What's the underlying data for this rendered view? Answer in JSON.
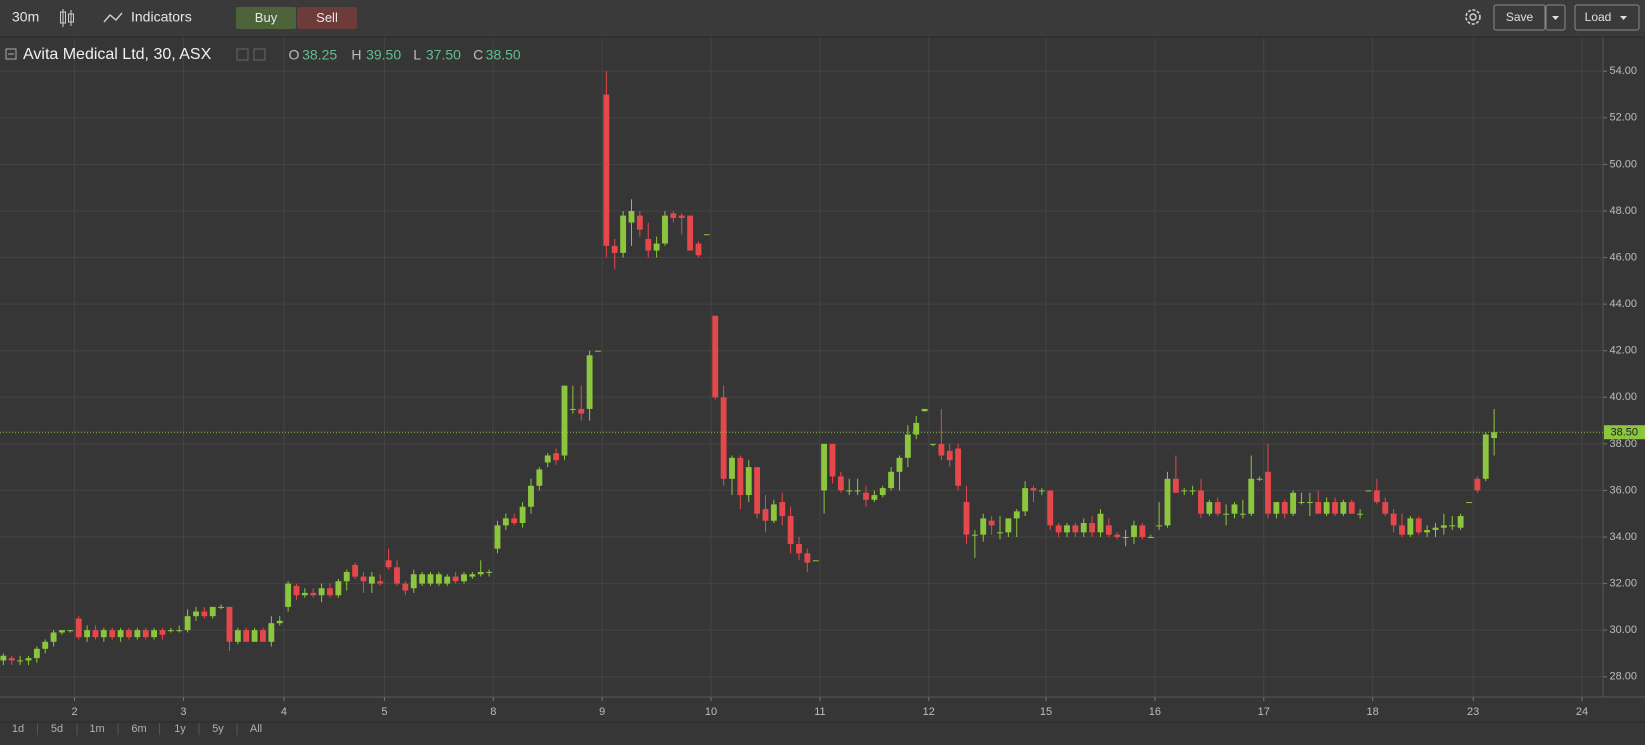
{
  "ui": {
    "interval": "30m",
    "indicators": "Indicators",
    "buy": "Buy",
    "sell": "Sell",
    "save": "Save",
    "load": "Load",
    "ranges": [
      "1d",
      "5d",
      "1m",
      "6m",
      "1y",
      "5y",
      "All"
    ]
  },
  "chart_data": {
    "type": "candlestick",
    "title": "Avita Medical Ltd, 30, ASX",
    "ohlc_legend": [
      {
        "key": "O",
        "value": "38.25"
      },
      {
        "key": "H",
        "value": "39.50"
      },
      {
        "key": "L",
        "value": "37.50"
      },
      {
        "key": "C",
        "value": "38.50"
      }
    ],
    "up_color": "#8cc63f",
    "down_color": "#e5474b",
    "grid": true,
    "last_price": {
      "value": 38.5,
      "label": "38.50"
    },
    "xlim": [
      -0.4,
      191
    ],
    "xticks": [
      {
        "value": 8.5,
        "label": "2"
      },
      {
        "value": 21.5,
        "label": "3"
      },
      {
        "value": 33.5,
        "label": "4"
      },
      {
        "value": 45.5,
        "label": "5"
      },
      {
        "value": 58.5,
        "label": "8"
      },
      {
        "value": 71.5,
        "label": "9"
      },
      {
        "value": 84.5,
        "label": "10"
      },
      {
        "value": 97.5,
        "label": "11"
      },
      {
        "value": 110.5,
        "label": "12"
      },
      {
        "value": 124.5,
        "label": "15"
      },
      {
        "value": 137.5,
        "label": "16"
      },
      {
        "value": 150.5,
        "label": "17"
      },
      {
        "value": 163.5,
        "label": "18"
      },
      {
        "value": 175.5,
        "label": "23"
      },
      {
        "value": 188.5,
        "label": "24"
      }
    ],
    "ylim": [
      27.13,
      55.47
    ],
    "yticks": [
      {
        "value": 28,
        "label": "28.00"
      },
      {
        "value": 30,
        "label": "30.00"
      },
      {
        "value": 32,
        "label": "32.00"
      },
      {
        "value": 34,
        "label": "34.00"
      },
      {
        "value": 36,
        "label": "36.00"
      },
      {
        "value": 38,
        "label": "38.00"
      },
      {
        "value": 40,
        "label": "40.00"
      },
      {
        "value": 42,
        "label": "42.00"
      },
      {
        "value": 44,
        "label": "44.00"
      },
      {
        "value": 46,
        "label": "46.00"
      },
      {
        "value": 48,
        "label": "48.00"
      },
      {
        "value": 50,
        "label": "50.00"
      },
      {
        "value": 52,
        "label": "52.00"
      },
      {
        "value": 54,
        "label": "54.00"
      }
    ],
    "open": [
      28.7,
      28.8,
      28.7,
      28.7,
      28.8,
      29.2,
      29.5,
      29.9,
      30.0,
      30.5,
      29.7,
      30.0,
      29.7,
      30.0,
      29.7,
      30.0,
      29.7,
      30.0,
      29.7,
      30.0,
      30.0,
      30.0,
      30.0,
      30.6,
      30.8,
      30.6,
      31.0,
      31.0,
      29.5,
      30.0,
      29.5,
      30.0,
      29.5,
      30.3,
      31.0,
      31.9,
      31.5,
      31.6,
      31.5,
      31.8,
      31.5,
      32.1,
      32.8,
      32.3,
      32.0,
      32.1,
      33.0,
      32.7,
      32.0,
      31.8,
      32.0,
      32.0,
      32.0,
      32.0,
      32.3,
      32.1,
      32.3,
      32.4,
      32.5,
      33.5,
      34.5,
      34.8,
      34.6,
      35.3,
      36.2,
      37.2,
      37.6,
      37.5,
      39.5,
      39.5,
      39.5,
      42.0,
      53.0,
      46.5,
      46.2,
      47.5,
      47.8,
      46.8,
      46.3,
      46.6,
      47.9,
      47.8,
      47.8,
      46.6,
      47.0,
      43.5,
      40.0,
      36.5,
      37.4,
      35.8,
      37.0,
      35.2,
      34.7,
      35.5,
      34.9,
      33.7,
      33.3,
      33.0,
      36.0,
      38.0,
      36.6,
      36.0,
      36.0,
      35.9,
      35.6,
      35.8,
      36.1,
      36.8,
      37.4,
      38.4,
      39.4,
      38.0,
      38.0,
      37.7,
      37.8,
      35.5,
      34.1,
      34.1,
      34.7,
      34.2,
      34.2,
      34.8,
      35.1,
      36.1,
      36.0,
      36.0,
      34.5,
      34.2,
      34.5,
      34.2,
      34.6,
      34.2,
      34.5,
      34.1,
      34.0,
      34.0,
      34.5,
      34.0,
      34.5,
      34.5,
      36.5,
      36.0,
      36.0,
      36.0,
      35.0,
      35.5,
      35.0,
      35.0,
      35.0,
      35.0,
      36.5,
      36.8,
      35.0,
      35.5,
      35.0,
      35.5,
      35.5,
      35.5,
      35.0,
      35.5,
      35.0,
      35.5,
      35.0,
      36.0,
      36.0,
      35.5,
      35.0,
      34.5,
      34.1,
      34.8,
      34.2,
      34.3,
      34.4,
      34.5,
      34.4,
      35.5,
      36.5,
      36.5,
      38.25
    ],
    "high": [
      29.0,
      28.9,
      28.9,
      28.9,
      29.3,
      29.6,
      30.0,
      30.0,
      30.0,
      30.6,
      30.2,
      30.2,
      30.1,
      30.1,
      30.1,
      30.1,
      30.1,
      30.1,
      30.1,
      30.1,
      30.1,
      30.2,
      30.9,
      31.0,
      31.0,
      31.0,
      31.1,
      31.0,
      30.1,
      30.1,
      30.1,
      30.1,
      30.6,
      30.6,
      32.1,
      32.0,
      31.8,
      31.8,
      32.0,
      32.0,
      32.2,
      32.6,
      32.9,
      32.5,
      32.5,
      32.4,
      33.5,
      33.0,
      32.1,
      32.6,
      32.5,
      32.5,
      32.5,
      32.4,
      32.5,
      32.5,
      32.5,
      33.0,
      32.6,
      34.7,
      35.0,
      35.0,
      35.5,
      36.5,
      37.0,
      37.6,
      37.8,
      40.5,
      40.5,
      40.5,
      42.0,
      42.0,
      54.0,
      46.8,
      48.0,
      48.5,
      48.0,
      47.5,
      46.9,
      48.0,
      48.0,
      47.9,
      47.8,
      46.7,
      47.0,
      43.5,
      40.5,
      37.5,
      37.5,
      37.3,
      37.0,
      35.8,
      35.6,
      35.9,
      35.3,
      34.0,
      33.5,
      33.0,
      38.0,
      38.0,
      36.8,
      36.5,
      36.5,
      36.2,
      36.0,
      36.2,
      37.0,
      37.5,
      38.8,
      39.2,
      39.5,
      38.0,
      39.5,
      38.0,
      38.0,
      36.2,
      34.3,
      35.0,
      34.9,
      34.9,
      34.8,
      35.2,
      36.4,
      36.2,
      36.1,
      36.0,
      34.6,
      34.6,
      34.6,
      34.8,
      34.9,
      35.2,
      34.8,
      34.2,
      34.3,
      34.7,
      34.6,
      34.1,
      35.5,
      36.8,
      37.5,
      36.1,
      36.2,
      36.5,
      35.6,
      35.7,
      35.4,
      35.5,
      35.6,
      37.5,
      36.6,
      38.0,
      35.5,
      35.6,
      36.0,
      35.9,
      35.9,
      36.0,
      35.7,
      35.7,
      35.6,
      35.6,
      35.2,
      36.0,
      36.5,
      35.7,
      35.2,
      35.0,
      34.9,
      34.9,
      34.5,
      34.6,
      35.0,
      34.9,
      35.0,
      35.5,
      36.6,
      38.5,
      39.5
    ],
    "low": [
      28.5,
      28.5,
      28.5,
      28.5,
      28.6,
      29.0,
      29.3,
      29.8,
      29.9,
      29.6,
      29.5,
      29.6,
      29.5,
      29.6,
      29.5,
      29.6,
      29.6,
      29.6,
      29.6,
      29.6,
      29.9,
      29.9,
      29.9,
      30.4,
      30.5,
      30.5,
      30.9,
      29.1,
      29.4,
      29.5,
      29.5,
      29.5,
      29.3,
      30.2,
      30.8,
      31.3,
      31.4,
      31.4,
      31.2,
      31.4,
      31.4,
      31.7,
      32.2,
      31.6,
      31.6,
      31.9,
      32.6,
      31.9,
      31.5,
      31.6,
      31.9,
      31.9,
      31.9,
      31.9,
      32.0,
      32.0,
      32.2,
      32.3,
      32.3,
      33.3,
      34.3,
      34.5,
      34.4,
      35.0,
      36.0,
      37.0,
      37.1,
      37.3,
      39.3,
      39.0,
      39.0,
      42.0,
      46.0,
      45.5,
      46.0,
      46.5,
      46.9,
      46.0,
      46.0,
      46.5,
      47.5,
      47.0,
      46.3,
      46.0,
      47.0,
      39.9,
      36.2,
      35.8,
      35.2,
      35.5,
      34.8,
      34.2,
      34.6,
      34.5,
      33.3,
      33.0,
      32.5,
      33.0,
      35.0,
      36.3,
      35.9,
      35.8,
      35.8,
      35.3,
      35.5,
      35.7,
      36.0,
      36.0,
      37.0,
      38.2,
      39.4,
      37.9,
      37.3,
      37.0,
      36.0,
      33.7,
      33.1,
      33.8,
      34.1,
      33.9,
      34.0,
      34.0,
      34.9,
      35.5,
      35.8,
      34.3,
      34.0,
      34.0,
      34.0,
      34.0,
      34.0,
      34.0,
      34.0,
      33.9,
      33.6,
      33.7,
      33.9,
      34.0,
      34.3,
      34.4,
      35.9,
      35.8,
      35.8,
      34.8,
      34.9,
      34.9,
      34.5,
      34.8,
      34.8,
      34.9,
      36.4,
      34.8,
      34.8,
      34.8,
      34.9,
      35.4,
      34.9,
      35.0,
      34.9,
      34.9,
      34.9,
      35.0,
      34.8,
      36.0,
      35.4,
      34.9,
      34.2,
      34.0,
      34.0,
      34.1,
      34.0,
      34.0,
      34.1,
      34.3,
      34.3,
      35.5,
      35.9,
      36.4,
      37.5
    ],
    "close": [
      28.9,
      28.7,
      28.7,
      28.8,
      29.2,
      29.5,
      29.9,
      30.0,
      30.0,
      29.7,
      30.0,
      29.7,
      30.0,
      29.7,
      30.0,
      29.7,
      30.0,
      29.7,
      30.0,
      29.8,
      30.0,
      30.0,
      30.6,
      30.8,
      30.6,
      31.0,
      31.0,
      29.5,
      30.0,
      29.5,
      30.0,
      29.5,
      30.3,
      30.4,
      32.0,
      31.5,
      31.6,
      31.5,
      31.8,
      31.5,
      32.1,
      32.5,
      32.3,
      32.1,
      32.3,
      32.0,
      32.7,
      32.0,
      31.7,
      32.4,
      32.4,
      32.4,
      32.4,
      32.3,
      32.1,
      32.4,
      32.4,
      32.5,
      32.5,
      34.5,
      34.8,
      34.6,
      35.3,
      36.2,
      36.9,
      37.5,
      37.3,
      40.5,
      39.5,
      39.3,
      41.8,
      42.0,
      46.5,
      46.2,
      47.8,
      48.0,
      47.2,
      46.3,
      46.6,
      47.8,
      47.7,
      47.7,
      46.3,
      46.1,
      47.0,
      40.0,
      36.5,
      37.4,
      35.8,
      37.0,
      35.0,
      34.7,
      35.4,
      34.9,
      33.7,
      33.3,
      32.9,
      33.0,
      38.0,
      36.6,
      36.0,
      36.0,
      36.0,
      35.6,
      35.8,
      36.1,
      36.8,
      37.4,
      38.4,
      38.9,
      39.5,
      38.0,
      37.5,
      37.3,
      36.2,
      34.1,
      34.1,
      34.8,
      34.5,
      34.2,
      34.8,
      35.1,
      36.1,
      36.0,
      36.0,
      34.5,
      34.2,
      34.5,
      34.2,
      34.6,
      34.2,
      35.0,
      34.1,
      34.0,
      34.0,
      34.5,
      34.0,
      34.0,
      34.5,
      36.5,
      35.9,
      36.0,
      36.0,
      35.0,
      35.5,
      35.0,
      35.0,
      35.4,
      35.0,
      36.5,
      36.5,
      35.0,
      35.5,
      35.0,
      35.9,
      35.5,
      35.5,
      35.0,
      35.5,
      35.0,
      35.5,
      35.0,
      35.0,
      36.0,
      35.5,
      35.0,
      34.5,
      34.1,
      34.8,
      34.2,
      34.3,
      34.4,
      34.5,
      34.5,
      34.9,
      35.5,
      36.0,
      38.4,
      38.5
    ]
  }
}
